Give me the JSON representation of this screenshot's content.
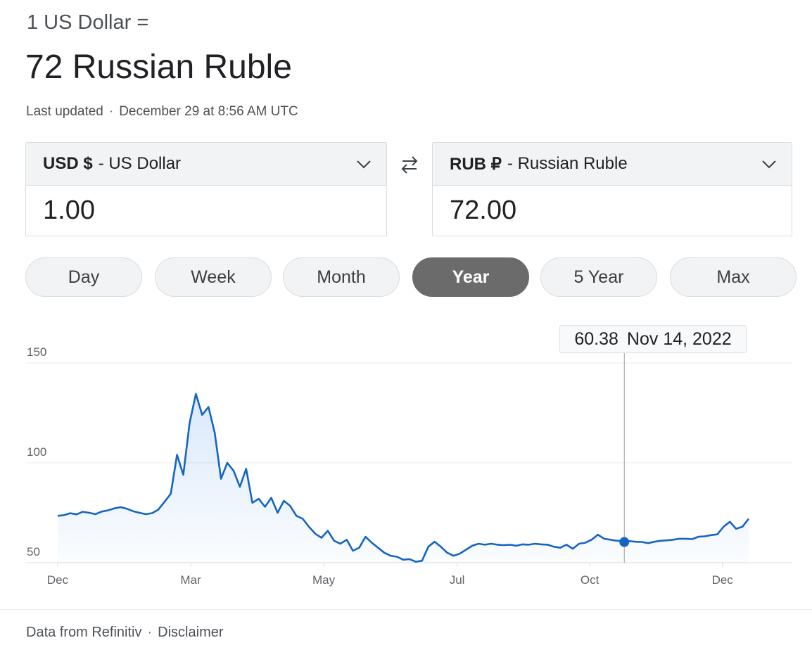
{
  "header": {
    "subtitle": "1 US Dollar =",
    "result": "72 Russian Ruble",
    "updated_label": "Last updated",
    "updated_sep": "·",
    "updated_time": "December 29 at 8:56 AM UTC"
  },
  "converter": {
    "from": {
      "code": "USD $",
      "name": "- US Dollar",
      "value": "1.00"
    },
    "to": {
      "code": "RUB ₽",
      "name": "- Russian Ruble",
      "value": "72.00"
    },
    "swap_icon": "swap-arrows-icon",
    "dropdown_icon": "chevron-down-icon"
  },
  "ranges": [
    "Day",
    "Week",
    "Month",
    "Year",
    "5 Year",
    "Max"
  ],
  "active_range": "Year",
  "tooltip": {
    "value": "60.38",
    "date": "Nov 14, 2022"
  },
  "chart_data": {
    "type": "area",
    "y_ticks": [
      "150",
      "100",
      "50"
    ],
    "ylim": [
      50,
      150
    ],
    "x_ticks": [
      "Dec",
      "Mar",
      "May",
      "Jul",
      "Oct",
      "Dec"
    ],
    "highlight": {
      "x": 0.82,
      "y": 60.38
    },
    "series": [
      {
        "values": [
          73.5,
          73.8,
          74.8,
          74.2,
          75.5,
          75.0,
          74.3,
          75.6,
          76.2,
          77.2,
          77.8,
          77.0,
          75.8,
          75.0,
          74.3,
          74.8,
          76.5,
          80.5,
          84.5,
          104.0,
          94.0,
          120.0,
          134.5,
          124.0,
          128.0,
          115.0,
          92.0,
          100.0,
          96.0,
          88.0,
          97.0,
          80.0,
          82.0,
          78.0,
          82.5,
          75.0,
          81.0,
          78.5,
          73.5,
          72.0,
          68.0,
          64.5,
          62.5,
          66.0,
          61.0,
          59.5,
          61.5,
          56.0,
          57.5,
          63.0,
          60.0,
          57.5,
          55.0,
          53.5,
          53.0,
          51.5,
          51.8,
          50.5,
          51.0,
          58.0,
          60.5,
          58.0,
          55.0,
          53.5,
          54.5,
          56.5,
          58.5,
          59.5,
          59.0,
          59.5,
          59.0,
          58.8,
          59.0,
          58.5,
          59.2,
          59.0,
          59.5,
          59.2,
          59.0,
          58.0,
          57.5,
          59.0,
          57.0,
          59.5,
          60.0,
          61.5,
          64.0,
          62.0,
          61.5,
          61.0,
          61.0,
          60.8,
          60.5,
          60.38,
          59.8,
          60.5,
          61.0,
          61.2,
          61.5,
          62.0,
          62.0,
          61.8,
          63.0,
          63.2,
          63.8,
          64.2,
          68.0,
          70.5,
          67.0,
          68.0,
          72.0
        ]
      }
    ],
    "x_range": [
      0,
      1
    ],
    "grid": true
  },
  "footer": {
    "source": "Data from Refinitiv",
    "sep": "·",
    "disclaimer": "Disclaimer"
  }
}
